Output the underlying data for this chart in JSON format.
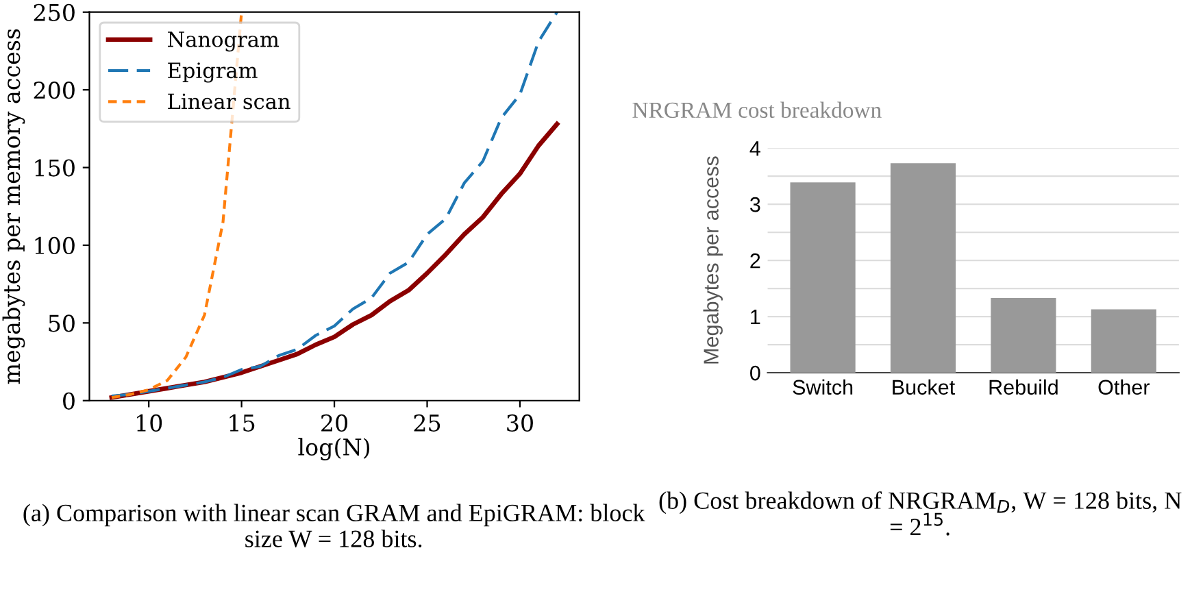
{
  "chart_data": [
    {
      "type": "line",
      "xlabel": "log(N)",
      "ylabel": "megabytes per memory access",
      "xlim": [
        6.8,
        33.2
      ],
      "ylim": [
        0,
        250
      ],
      "xticks": [
        10,
        15,
        20,
        25,
        30
      ],
      "yticks": [
        0,
        50,
        100,
        150,
        200,
        250
      ],
      "grid": false,
      "legend": "top left",
      "marker": "none",
      "annotations": [
        "(a) Comparison with linear scan GRAM and EpiGRAM: block size W = 128 bits."
      ],
      "series": [
        {
          "name": "Nanogram",
          "color": "#8b0000",
          "line_style": "solid",
          "x": [
            8,
            9,
            10,
            11,
            12,
            13,
            14,
            15,
            16,
            17,
            18,
            19,
            20,
            21,
            22,
            23,
            24,
            25,
            26,
            27,
            28,
            29,
            30,
            31,
            32
          ],
          "values": [
            2,
            4,
            6,
            8,
            10,
            12,
            15,
            18,
            22,
            26,
            30,
            36,
            41,
            49,
            55,
            64,
            71,
            82,
            94,
            107,
            118,
            133,
            146,
            164,
            178
          ]
        },
        {
          "name": "Epigram",
          "color": "#1f77b4",
          "line_style": "dashed",
          "x": [
            8,
            9,
            10,
            11,
            12,
            13,
            14,
            15,
            16,
            17,
            18,
            19,
            20,
            21,
            22,
            23,
            24,
            25,
            26,
            27,
            28,
            29,
            30,
            31,
            32
          ],
          "values": [
            3,
            4,
            6,
            8,
            10,
            12,
            15,
            20,
            22,
            29,
            33,
            42,
            48,
            59,
            66,
            82,
            89,
            107,
            117,
            140,
            154,
            182,
            197,
            231,
            250
          ]
        },
        {
          "name": "Linear scan",
          "color": "#ff7f0e",
          "line_style": "dotted",
          "x": [
            8,
            9,
            10,
            11,
            12,
            13,
            14,
            15
          ],
          "values": [
            2,
            4,
            7,
            13,
            28,
            55,
            115,
            250
          ]
        }
      ]
    },
    {
      "type": "bar",
      "title": "NRGRAM cost breakdown",
      "ylabel": "Megabytes per access",
      "categories": [
        "Switch",
        "Bucket",
        "Rebuild",
        "Other"
      ],
      "values": [
        3.39,
        3.73,
        1.33,
        1.13
      ],
      "color": "#999999",
      "ylim": [
        0,
        4
      ],
      "yticks": [
        0,
        {
          "value": 0.5,
          "label": null
        },
        1,
        {
          "value": 1.5,
          "label": null
        },
        2,
        {
          "value": 2.5,
          "label": null
        },
        3,
        {
          "value": 3.5,
          "label": null
        },
        4
      ],
      "grid": "y",
      "annotations": [
        "(b) Cost breakdown of NRGRAM$_{D}$, W = 128 bits, N = 2$^{15}$."
      ]
    }
  ]
}
